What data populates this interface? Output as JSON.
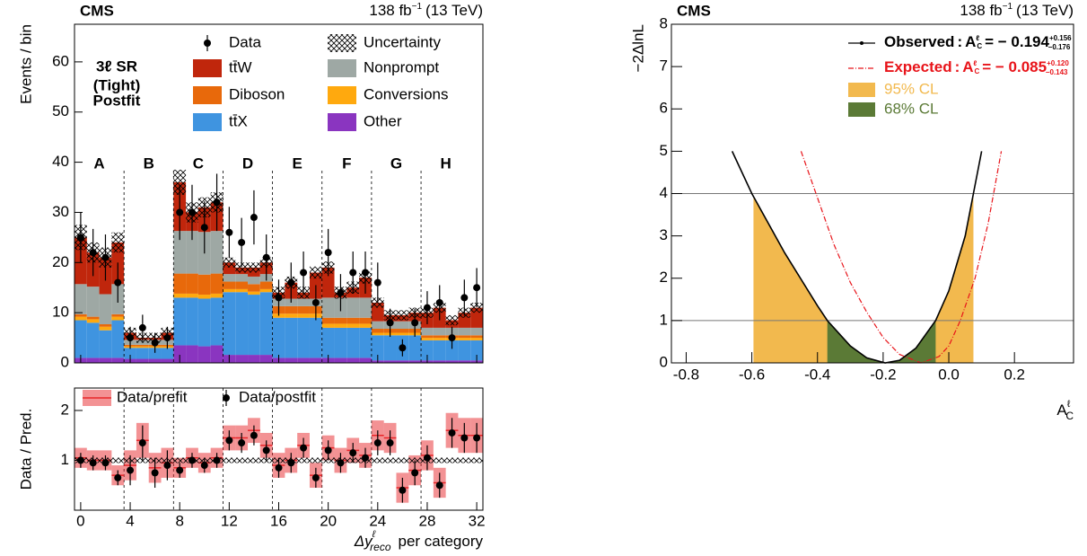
{
  "chart_data": [
    {
      "type": "stacked_bar",
      "brand": "CMS",
      "lumi": "138 fb",
      "lumi_sup": "−1",
      "energy": "(13 TeV)",
      "region_label": "3ℓ SR",
      "region_sub": [
        "(Tight)",
        "Postfit"
      ],
      "ylabel": "Events / bin",
      "x": [
        0,
        1,
        2,
        3,
        4,
        5,
        6,
        7,
        8,
        9,
        10,
        11,
        12,
        13,
        14,
        15,
        16,
        17,
        18,
        19,
        20,
        21,
        22,
        23,
        24,
        25,
        26,
        27,
        28,
        29,
        30,
        31,
        32
      ],
      "xlim": [
        -0.5,
        32.5
      ],
      "xticks": [
        0,
        4,
        8,
        12,
        16,
        20,
        24,
        28,
        32
      ],
      "ylim": [
        0,
        67.5
      ],
      "yticks": [
        0,
        10,
        20,
        30,
        40,
        50,
        60
      ],
      "groups": [
        {
          "label": "A",
          "x": 1.5
        },
        {
          "label": "B",
          "x": 5.5
        },
        {
          "label": "C",
          "x": 9.5
        },
        {
          "label": "D",
          "x": 13.5
        },
        {
          "label": "E",
          "x": 17.5
        },
        {
          "label": "F",
          "x": 21.5
        },
        {
          "label": "G",
          "x": 25.5
        },
        {
          "label": "H",
          "x": 29.5
        }
      ],
      "dividers": [
        3.5,
        7.5,
        11.5,
        15.5,
        19.5,
        23.5,
        27.5
      ],
      "series": [
        {
          "name": "Other",
          "color": "#8a35c0",
          "values": [
            1,
            1,
            1,
            1,
            0.8,
            0.8,
            0.8,
            0.8,
            3.5,
            3.5,
            3.3,
            3.5,
            1.6,
            1.6,
            1.6,
            1.6,
            1,
            1,
            1,
            1,
            1,
            1,
            1,
            1,
            0.5,
            0.5,
            0.5,
            0.5,
            0.5,
            0.5,
            0.5,
            0.5,
            0.5
          ]
        },
        {
          "name": "tt̄X",
          "color": "#3f94e0",
          "values": [
            7.5,
            7,
            5.5,
            7.5,
            2.2,
            2.2,
            2.2,
            2.2,
            9.5,
            9.5,
            9.5,
            9.5,
            12.5,
            12.5,
            12,
            12.5,
            8,
            8,
            8,
            8,
            6,
            6,
            6,
            6,
            5,
            5,
            5,
            5,
            4,
            4,
            4,
            4,
            4
          ]
        },
        {
          "name": "Conversions",
          "color": "#ffa90e",
          "values": [
            0.7,
            0.7,
            0.7,
            0.7,
            0.3,
            0.3,
            0.3,
            0.3,
            0.8,
            0.8,
            0.8,
            0.8,
            0.6,
            0.6,
            0.6,
            0.6,
            0.8,
            0.8,
            0.8,
            0.8,
            0.8,
            0.8,
            0.8,
            0.8,
            0.5,
            0.5,
            0.5,
            0.5,
            0.5,
            0.5,
            0.5,
            0.5,
            0.5
          ]
        },
        {
          "name": "Diboson",
          "color": "#e8690b",
          "values": [
            0.5,
            0.5,
            0.5,
            0.5,
            0.3,
            0.3,
            0.3,
            0.3,
            4,
            4,
            4,
            4,
            1.5,
            1.5,
            1.5,
            1.5,
            1.5,
            1.5,
            1.5,
            1.5,
            1.2,
            1.2,
            1.2,
            1.2,
            0.8,
            0.8,
            0.8,
            0.8,
            0.5,
            0.5,
            0.5,
            0.5,
            0.5
          ]
        },
        {
          "name": "Nonprompt",
          "color": "#9ea8a4",
          "values": [
            6,
            6,
            6,
            6,
            1,
            1,
            1,
            1,
            8.5,
            8.5,
            8.5,
            8.5,
            1.5,
            1.5,
            1.5,
            1.5,
            1.5,
            1.5,
            1.5,
            1.5,
            4,
            4,
            4,
            4,
            1.5,
            1.5,
            1.5,
            1.5,
            1.5,
            1.5,
            1.5,
            1.5,
            1.5
          ]
        },
        {
          "name": "tt̄W",
          "color": "#c0260c",
          "values": [
            9.3,
            6.8,
            7.3,
            8.3,
            1.4,
            0.4,
            0.4,
            1.4,
            9.7,
            3.7,
            4.9,
            5.7,
            2.3,
            1.3,
            1.8,
            2.3,
            1.2,
            3.2,
            1.2,
            5.2,
            6,
            1,
            2,
            4,
            3.7,
            1.2,
            1.2,
            1.7,
            3,
            4,
            1.5,
            3,
            4
          ]
        }
      ],
      "uncertainty": {
        "name": "Uncertainty",
        "values": [
          2.5,
          2,
          2,
          2,
          1,
          1,
          1,
          1,
          2.5,
          2,
          2,
          2,
          1,
          1,
          1,
          1,
          1.2,
          1.2,
          1.2,
          1.2,
          1.2,
          1.2,
          1.2,
          1.2,
          1,
          1,
          1,
          1,
          1,
          1,
          1,
          1,
          1
        ]
      },
      "data": {
        "name": "Data",
        "color": "#000000",
        "values": [
          25,
          22,
          21,
          16,
          5,
          7,
          4,
          5,
          30,
          30,
          27,
          32,
          26,
          24,
          29,
          21,
          13,
          16,
          18,
          12,
          22,
          14,
          18,
          18,
          16,
          8,
          3,
          8,
          11,
          12,
          5,
          13,
          15
        ],
        "errors": [
          5,
          4.7,
          4.6,
          4,
          2.2,
          2.6,
          2,
          2.2,
          5.5,
          5.5,
          5.2,
          5.7,
          5.1,
          4.9,
          5.4,
          4.6,
          3.6,
          4,
          4.2,
          3.5,
          4.7,
          3.7,
          4.2,
          4.2,
          4,
          2.8,
          1.7,
          2.8,
          3.3,
          3.5,
          2.2,
          3.6,
          3.9
        ]
      },
      "ratio": {
        "ylabel": "Data / Pred.",
        "ylim": [
          0,
          2.45
        ],
        "yticks": [
          1,
          2
        ],
        "reference": 1,
        "xlabel": {
          "symbol": "Δy",
          "sub": "reco",
          "sup": "ℓ",
          "text": "per category"
        },
        "series": [
          {
            "name": "Data/prefit",
            "color": "#e8262a",
            "values": [
              1.05,
              1.0,
              1.0,
              0.7,
              0.9,
              1.4,
              0.85,
              0.95,
              0.85,
              1.05,
              0.95,
              1.05,
              1.45,
              1.45,
              1.6,
              1.3,
              0.9,
              1.0,
              1.3,
              0.7,
              1.25,
              1.0,
              1.2,
              1.1,
              1.5,
              1.45,
              0.45,
              0.8,
              1.1,
              0.55,
              1.6,
              1.5,
              1.5
            ],
            "errors": [
              0.2,
              0.2,
              0.2,
              0.2,
              0.3,
              0.35,
              0.3,
              0.3,
              0.2,
              0.2,
              0.2,
              0.2,
              0.25,
              0.25,
              0.25,
              0.25,
              0.25,
              0.25,
              0.25,
              0.25,
              0.25,
              0.25,
              0.25,
              0.25,
              0.3,
              0.3,
              0.3,
              0.3,
              0.3,
              0.3,
              0.35,
              0.35,
              0.35
            ]
          },
          {
            "name": "Data/postfit",
            "color": "#000000",
            "values": [
              1.0,
              0.95,
              0.95,
              0.65,
              0.8,
              1.35,
              0.75,
              0.9,
              0.8,
              1.0,
              0.9,
              1.0,
              1.4,
              1.35,
              1.5,
              1.2,
              0.85,
              0.95,
              1.25,
              0.65,
              1.2,
              0.95,
              1.15,
              1.05,
              1.35,
              1.35,
              0.4,
              0.75,
              1.05,
              0.5,
              1.55,
              1.45,
              1.45
            ],
            "errors": [
              0.15,
              0.15,
              0.15,
              0.15,
              0.3,
              0.35,
              0.3,
              0.3,
              0.15,
              0.15,
              0.15,
              0.15,
              0.2,
              0.2,
              0.2,
              0.2,
              0.2,
              0.2,
              0.2,
              0.2,
              0.2,
              0.2,
              0.2,
              0.2,
              0.25,
              0.25,
              0.25,
              0.25,
              0.25,
              0.25,
              0.3,
              0.3,
              0.3
            ]
          }
        ]
      }
    },
    {
      "type": "line",
      "brand": "CMS",
      "lumi": "138 fb",
      "lumi_sup": "−1",
      "energy": "(13 TeV)",
      "ylabel": "−2ΔlnL",
      "xlabel": {
        "symbol": "A",
        "sub": "C",
        "sup": "ℓ"
      },
      "xlim": [
        -0.845,
        0.38
      ],
      "xticks": [
        -0.8,
        -0.6,
        -0.4,
        -0.2,
        {
          "value": 0,
          "label": "0.0"
        },
        0.2
      ],
      "ylim": [
        0,
        8
      ],
      "yticks": [
        0,
        1,
        2,
        3,
        4,
        5,
        6,
        7,
        8
      ],
      "hlines": [
        1,
        4
      ],
      "series": [
        {
          "name": "Observed",
          "color": "#000000",
          "separator": ":",
          "result": {
            "symbol": "A",
            "sub": "C",
            "sup": "ℓ",
            "central": "= − 0.194",
            "up": "+0.156",
            "down": "−0.176"
          },
          "x": [
            -0.66,
            -0.6,
            -0.5,
            -0.4,
            -0.37,
            -0.3,
            -0.25,
            -0.194,
            -0.15,
            -0.1,
            -0.04,
            0.0,
            0.05,
            0.075,
            0.1
          ],
          "values": [
            5,
            4.0,
            2.6,
            1.35,
            1.0,
            0.4,
            0.12,
            0,
            0.06,
            0.35,
            1.0,
            1.7,
            3.0,
            4.0,
            5.0
          ]
        },
        {
          "name": "Expected",
          "color": "#e8141a",
          "separator": ":",
          "result": {
            "symbol": "A",
            "sub": "C",
            "sup": "ℓ",
            "central": "= − 0.085",
            "up": "+0.120",
            "down": "−0.143"
          },
          "x": [
            -0.45,
            -0.4,
            -0.35,
            -0.3,
            -0.25,
            -0.2,
            -0.15,
            -0.085,
            -0.03,
            0.0,
            0.035,
            0.08,
            0.12,
            0.16
          ],
          "values": [
            5,
            3.9,
            2.8,
            1.9,
            1.2,
            0.6,
            0.2,
            0,
            0.15,
            0.4,
            1.0,
            2.0,
            3.3,
            5.0
          ]
        }
      ],
      "bands": [
        {
          "name": "95% CL",
          "color": "#f2b94e",
          "interval": [
            -0.595,
            0.075
          ]
        },
        {
          "name": "68% CL",
          "color": "#5b7a36",
          "interval": [
            -0.37,
            -0.04
          ]
        }
      ]
    }
  ]
}
